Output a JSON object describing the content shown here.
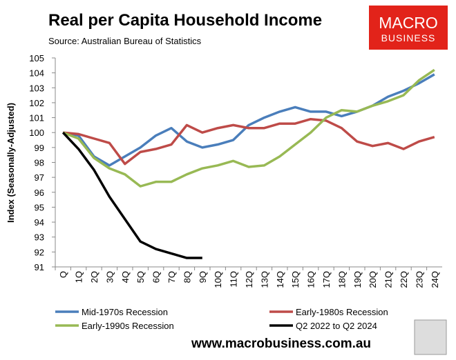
{
  "chart_data": {
    "type": "line",
    "title": "Real per Capita Household Income",
    "subtitle": "Source: Australian Bureau of Statistics",
    "y_label": "Index (Seasonally-Adjusted)",
    "logo": [
      "MACRO",
      "BUSINESS"
    ],
    "website": "www.macrobusiness.com.au",
    "categories": [
      "Q",
      "1Q",
      "2Q",
      "3Q",
      "4Q",
      "5Q",
      "6Q",
      "7Q",
      "8Q",
      "9Q",
      "10Q",
      "11Q",
      "12Q",
      "13Q",
      "14Q",
      "15Q",
      "16Q",
      "17Q",
      "18Q",
      "19Q",
      "20Q",
      "21Q",
      "22Q",
      "23Q",
      "24Q"
    ],
    "ylim": [
      91,
      105
    ],
    "yticks": [
      91,
      92,
      93,
      94,
      95,
      96,
      97,
      98,
      99,
      100,
      101,
      102,
      103,
      104,
      105
    ],
    "series": [
      {
        "name": "Mid-1970s Recession",
        "color": "#4a7ebb",
        "values": [
          100,
          99.8,
          98.4,
          97.8,
          98.4,
          99.0,
          99.8,
          100.3,
          99.4,
          99.0,
          99.2,
          99.5,
          100.5,
          101.0,
          101.4,
          101.7,
          101.4,
          101.4,
          101.1,
          101.4,
          101.8,
          102.4,
          102.8,
          103.3,
          103.9
        ]
      },
      {
        "name": "Early-1980s Recession",
        "color": "#be4b48",
        "values": [
          100,
          99.9,
          99.6,
          99.3,
          97.9,
          98.7,
          98.9,
          99.2,
          100.5,
          100.0,
          100.3,
          100.5,
          100.3,
          100.3,
          100.6,
          100.6,
          100.9,
          100.8,
          100.3,
          99.4,
          99.1,
          99.3,
          98.9,
          99.4,
          99.7
        ]
      },
      {
        "name": "Early-1990s Recession",
        "color": "#98b954",
        "values": [
          100,
          99.6,
          98.3,
          97.6,
          97.2,
          96.4,
          96.7,
          96.7,
          97.2,
          97.6,
          97.8,
          98.1,
          97.7,
          97.8,
          98.4,
          99.2,
          100.0,
          101.0,
          101.5,
          101.4,
          101.8,
          102.1,
          102.5,
          103.5,
          104.2
        ]
      },
      {
        "name": "Q2 2022 to Q2 2024",
        "color": "#000000",
        "values": [
          100,
          98.9,
          97.5,
          95.7,
          94.2,
          92.7,
          92.2,
          91.9,
          91.6,
          91.6,
          null,
          null,
          null,
          null,
          null,
          null,
          null,
          null,
          null,
          null,
          null,
          null,
          null,
          null,
          null
        ]
      }
    ]
  }
}
